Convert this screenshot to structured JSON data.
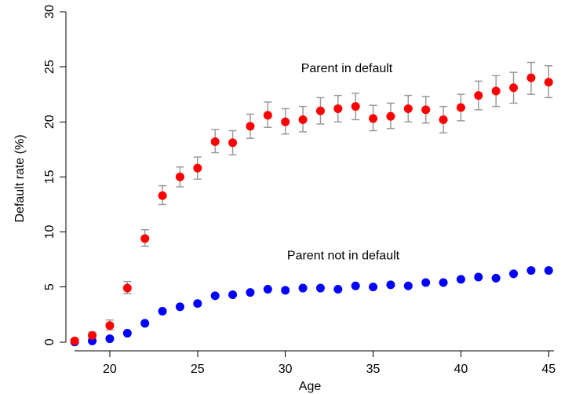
{
  "chart_data": {
    "type": "scatter",
    "title": "",
    "xlabel": "Age",
    "ylabel": "Default rate (%)",
    "xlim": [
      17.5,
      45.3
    ],
    "ylim": [
      -0.8,
      30.5
    ],
    "xticks": [
      20,
      25,
      30,
      35,
      40,
      45
    ],
    "yticks": [
      0,
      5,
      10,
      15,
      20,
      25,
      30
    ],
    "grid": false,
    "legend": "none",
    "series": [
      {
        "key": "default",
        "color": "#ff0000",
        "error_bar_color": "#9a9a9a",
        "points": [
          {
            "x": 18,
            "y": 0.1,
            "lo": 0.0,
            "hi": 0.3
          },
          {
            "x": 19,
            "y": 0.6,
            "lo": 0.3,
            "hi": 0.9
          },
          {
            "x": 20,
            "y": 1.5,
            "lo": 1.1,
            "hi": 2.0
          },
          {
            "x": 21,
            "y": 4.9,
            "lo": 4.4,
            "hi": 5.5
          },
          {
            "x": 22,
            "y": 9.4,
            "lo": 8.7,
            "hi": 10.2
          },
          {
            "x": 23,
            "y": 13.3,
            "lo": 12.5,
            "hi": 14.2
          },
          {
            "x": 24,
            "y": 15.0,
            "lo": 14.1,
            "hi": 15.9
          },
          {
            "x": 25,
            "y": 15.8,
            "lo": 14.8,
            "hi": 16.8
          },
          {
            "x": 26,
            "y": 18.2,
            "lo": 17.2,
            "hi": 19.3
          },
          {
            "x": 27,
            "y": 18.1,
            "lo": 17.0,
            "hi": 19.2
          },
          {
            "x": 28,
            "y": 19.6,
            "lo": 18.5,
            "hi": 20.7
          },
          {
            "x": 29,
            "y": 20.6,
            "lo": 19.5,
            "hi": 21.8
          },
          {
            "x": 30,
            "y": 20.0,
            "lo": 18.9,
            "hi": 21.2
          },
          {
            "x": 31,
            "y": 20.2,
            "lo": 19.1,
            "hi": 21.4
          },
          {
            "x": 32,
            "y": 21.0,
            "lo": 19.8,
            "hi": 22.2
          },
          {
            "x": 33,
            "y": 21.2,
            "lo": 20.0,
            "hi": 22.4
          },
          {
            "x": 34,
            "y": 21.4,
            "lo": 20.2,
            "hi": 22.6
          },
          {
            "x": 35,
            "y": 20.3,
            "lo": 19.2,
            "hi": 21.5
          },
          {
            "x": 36,
            "y": 20.5,
            "lo": 19.4,
            "hi": 21.7
          },
          {
            "x": 37,
            "y": 21.2,
            "lo": 20.0,
            "hi": 22.4
          },
          {
            "x": 38,
            "y": 21.1,
            "lo": 19.9,
            "hi": 22.3
          },
          {
            "x": 39,
            "y": 20.2,
            "lo": 19.0,
            "hi": 21.4
          },
          {
            "x": 40,
            "y": 21.3,
            "lo": 20.1,
            "hi": 22.5
          },
          {
            "x": 41,
            "y": 22.4,
            "lo": 21.1,
            "hi": 23.7
          },
          {
            "x": 42,
            "y": 22.8,
            "lo": 21.4,
            "hi": 24.2
          },
          {
            "x": 43,
            "y": 23.1,
            "lo": 21.7,
            "hi": 24.5
          },
          {
            "x": 44,
            "y": 24.0,
            "lo": 22.5,
            "hi": 25.4
          },
          {
            "x": 45,
            "y": 23.6,
            "lo": 22.2,
            "hi": 25.1
          }
        ]
      },
      {
        "key": "not_default",
        "color": "#0000ff",
        "points": [
          {
            "x": 18,
            "y": 0.0
          },
          {
            "x": 19,
            "y": 0.1
          },
          {
            "x": 20,
            "y": 0.3
          },
          {
            "x": 21,
            "y": 0.8
          },
          {
            "x": 22,
            "y": 1.7
          },
          {
            "x": 23,
            "y": 2.8
          },
          {
            "x": 24,
            "y": 3.2
          },
          {
            "x": 25,
            "y": 3.5
          },
          {
            "x": 26,
            "y": 4.2
          },
          {
            "x": 27,
            "y": 4.3
          },
          {
            "x": 28,
            "y": 4.5
          },
          {
            "x": 29,
            "y": 4.8
          },
          {
            "x": 30,
            "y": 4.7
          },
          {
            "x": 31,
            "y": 4.9
          },
          {
            "x": 32,
            "y": 4.9
          },
          {
            "x": 33,
            "y": 4.8
          },
          {
            "x": 34,
            "y": 5.1
          },
          {
            "x": 35,
            "y": 5.0
          },
          {
            "x": 36,
            "y": 5.2
          },
          {
            "x": 37,
            "y": 5.1
          },
          {
            "x": 38,
            "y": 5.4
          },
          {
            "x": 39,
            "y": 5.4
          },
          {
            "x": 40,
            "y": 5.7
          },
          {
            "x": 41,
            "y": 5.9
          },
          {
            "x": 42,
            "y": 5.8
          },
          {
            "x": 43,
            "y": 6.2
          },
          {
            "x": 44,
            "y": 6.5
          },
          {
            "x": 45,
            "y": 6.5
          }
        ]
      }
    ],
    "annotations": [
      {
        "text": "Parent in default",
        "x": 33.5,
        "y": 24.5
      },
      {
        "text": "Parent not in default",
        "x": 33.3,
        "y": 7.5
      }
    ]
  }
}
